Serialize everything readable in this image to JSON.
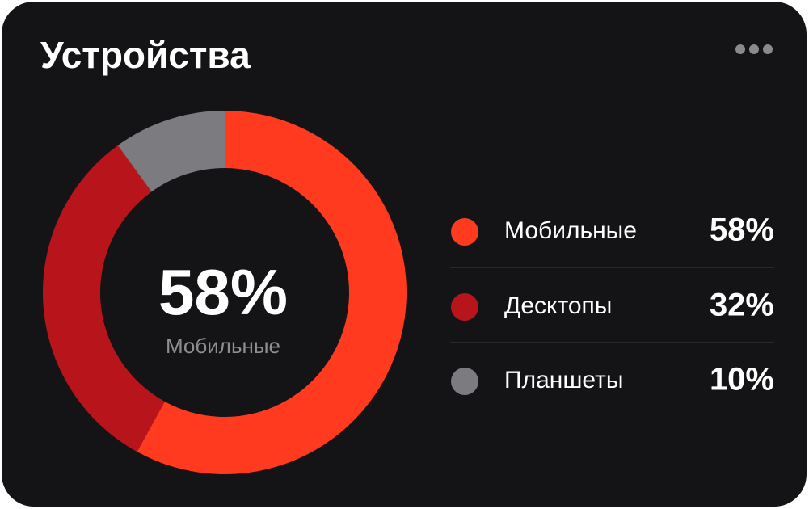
{
  "chart_data": {
    "type": "donut",
    "title": "Устройства",
    "categories": [
      "Мобильные",
      "Десктопы",
      "Планшеты"
    ],
    "values": [
      58,
      32,
      10
    ],
    "value_labels": [
      "58%",
      "32%",
      "10%"
    ],
    "colors": [
      "#ff3a1f",
      "#b8141c",
      "#7b7b80"
    ]
  }
}
